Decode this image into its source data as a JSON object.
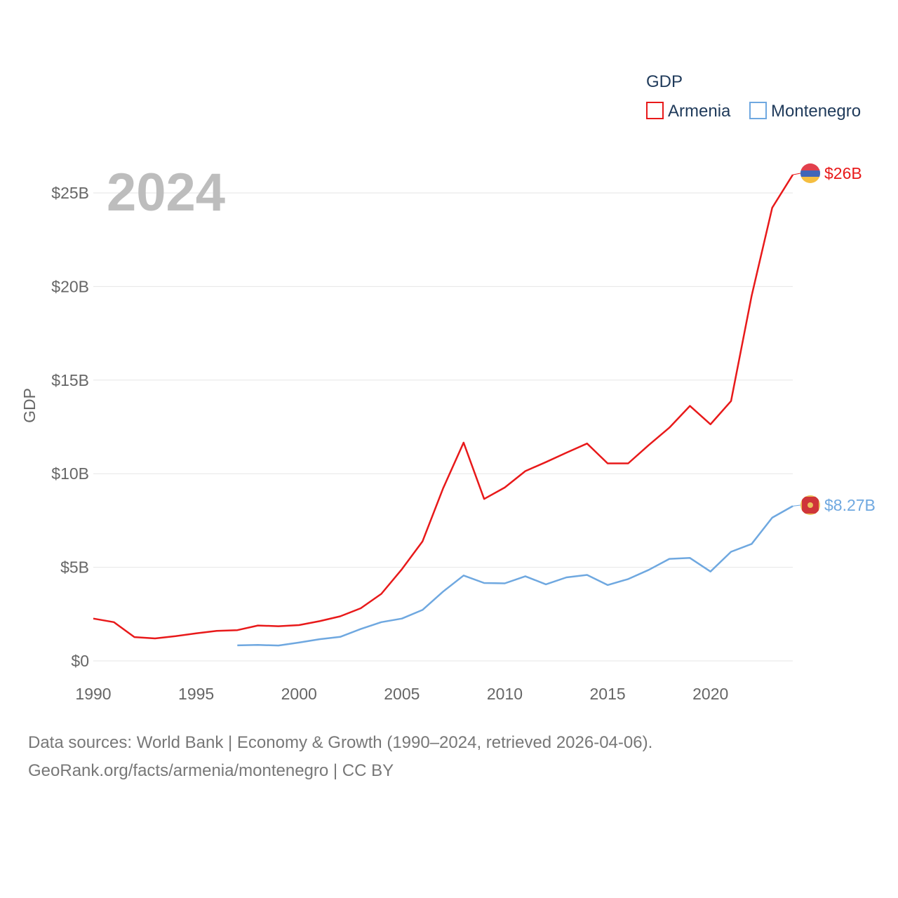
{
  "chart_data": {
    "type": "line",
    "title": "",
    "year_overlay": "2024",
    "xlabel": "",
    "ylabel": "GDP",
    "xlim": [
      1990,
      2024
    ],
    "ylim": [
      0,
      25
    ],
    "x_ticks": [
      1990,
      1995,
      2000,
      2005,
      2010,
      2015,
      2020
    ],
    "y_ticks": [
      {
        "value": 0,
        "label": "$0"
      },
      {
        "value": 5,
        "label": "$5B"
      },
      {
        "value": 10,
        "label": "$10B"
      },
      {
        "value": 15,
        "label": "$15B"
      },
      {
        "value": 20,
        "label": "$20B"
      },
      {
        "value": 25,
        "label": "$25B"
      }
    ],
    "grid": true,
    "legend": {
      "title": "GDP",
      "placement": "top-right"
    },
    "units": "billions USD",
    "series": [
      {
        "name": "Armenia",
        "color": "#e8191a",
        "end_label": "$26B",
        "flag": "armenia-flag",
        "x": [
          1990,
          1991,
          1992,
          1993,
          1994,
          1995,
          1996,
          1997,
          1998,
          1999,
          2000,
          2001,
          2002,
          2003,
          2004,
          2005,
          2006,
          2007,
          2008,
          2009,
          2010,
          2011,
          2012,
          2013,
          2014,
          2015,
          2016,
          2017,
          2018,
          2019,
          2020,
          2021,
          2022,
          2023,
          2024
        ],
        "values": [
          2.26,
          2.07,
          1.27,
          1.2,
          1.32,
          1.47,
          1.6,
          1.64,
          1.89,
          1.85,
          1.91,
          2.12,
          2.38,
          2.81,
          3.58,
          4.9,
          6.38,
          9.21,
          11.66,
          8.65,
          9.26,
          10.14,
          10.62,
          11.12,
          11.61,
          10.55,
          10.55,
          11.53,
          12.46,
          13.62,
          12.64,
          13.88,
          19.51,
          24.21,
          25.97
        ]
      },
      {
        "name": "Montenegro",
        "color": "#6fa8e0",
        "end_label": "$8.27B",
        "flag": "montenegro-flag",
        "x": [
          1997,
          1998,
          1999,
          2000,
          2001,
          2002,
          2003,
          2004,
          2005,
          2006,
          2007,
          2008,
          2009,
          2010,
          2011,
          2012,
          2013,
          2014,
          2015,
          2016,
          2017,
          2018,
          2019,
          2020,
          2021,
          2022,
          2023,
          2024
        ],
        "values": [
          0.83,
          0.85,
          0.82,
          0.98,
          1.16,
          1.28,
          1.7,
          2.07,
          2.26,
          2.72,
          3.7,
          4.56,
          4.16,
          4.14,
          4.52,
          4.09,
          4.46,
          4.59,
          4.05,
          4.37,
          4.86,
          5.45,
          5.5,
          4.77,
          5.83,
          6.25,
          7.65,
          8.27
        ]
      }
    ]
  },
  "footer": {
    "line1": "Data sources: World Bank | Economy & Growth (1990–2024, retrieved 2026-04-06).",
    "line2": "GeoRank.org/facts/armenia/montenegro | CC BY"
  }
}
